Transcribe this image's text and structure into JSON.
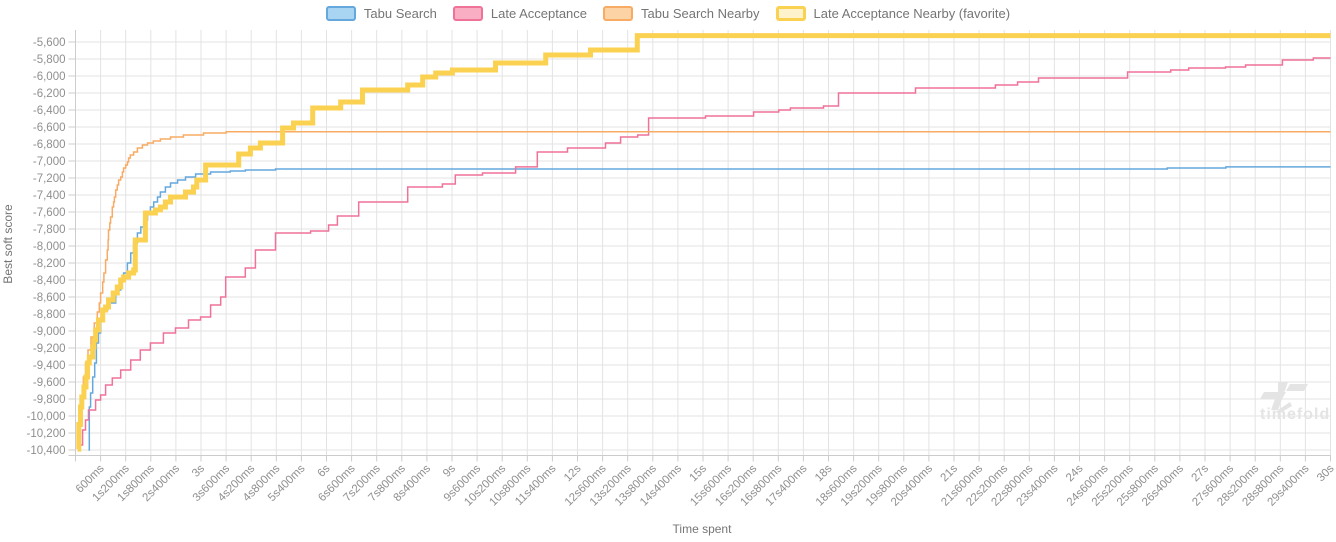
{
  "watermark": {
    "text": "timefold"
  },
  "legend": {
    "items": [
      {
        "label": "Tabu Search",
        "fill": "#A9D4F2",
        "stroke": "#64A8DD",
        "stroke_width": 2
      },
      {
        "label": "Late Acceptance",
        "fill": "#F9AEC4",
        "stroke": "#EF7298",
        "stroke_width": 2
      },
      {
        "label": "Tabu Search Nearby",
        "fill": "#FBD3A4",
        "stroke": "#F7AB64",
        "stroke_width": 2
      },
      {
        "label": "Late Acceptance Nearby (favorite)",
        "fill": "#FEF3CD",
        "stroke": "#FBD152",
        "stroke_width": 3
      }
    ]
  },
  "chart_data": {
    "type": "line",
    "step_mode": "after",
    "title": "",
    "xlabel": "Time spent",
    "ylabel": "Best soft score",
    "xlim_seconds": [
      0,
      30
    ],
    "ylim": [
      -10400,
      -5600
    ],
    "y_tick_step": 200,
    "x_tick_step_seconds": 0.6,
    "grid": true,
    "legend_position": "top",
    "colors": {
      "grid": "#e3e3e3",
      "axis": "#cccccc",
      "tick_label": "#8f8f8f",
      "title": "#757575"
    },
    "y_tick_labels": [
      "-5,600",
      "-5,800",
      "-6,000",
      "-6,200",
      "-6,400",
      "-6,600",
      "-6,800",
      "-7,000",
      "-7,200",
      "-7,400",
      "-7,600",
      "-7,800",
      "-8,000",
      "-8,200",
      "-8,400",
      "-8,600",
      "-8,800",
      "-9,000",
      "-9,200",
      "-9,400",
      "-9,600",
      "-9,800",
      "-10,000",
      "-10,200",
      "-10,400"
    ],
    "x_tick_labels": [
      "600ms",
      "1s200ms",
      "1s800ms",
      "2s400ms",
      "3s",
      "3s600ms",
      "4s200ms",
      "4s800ms",
      "5s400ms",
      "6s",
      "6s600ms",
      "7s200ms",
      "7s800ms",
      "8s400ms",
      "9s",
      "9s600ms",
      "10s200ms",
      "10s800ms",
      "11s400ms",
      "12s",
      "12s600ms",
      "13s200ms",
      "13s800ms",
      "14s400ms",
      "15s",
      "15s600ms",
      "16s200ms",
      "16s800ms",
      "17s400ms",
      "18s",
      "18s600ms",
      "19s200ms",
      "19s800ms",
      "20s400ms",
      "21s",
      "21s600ms",
      "22s200ms",
      "22s800ms",
      "23s400ms",
      "24s",
      "24s600ms",
      "25s200ms",
      "25s800ms",
      "26s400ms",
      "27s",
      "27s600ms",
      "28s200ms",
      "28s800ms",
      "29s400ms",
      "30s"
    ],
    "series": [
      {
        "name": "Tabu Search",
        "color": "#64A8DD",
        "width": 1.5,
        "points": [
          [
            0.31,
            -10400
          ],
          [
            0.33,
            -9894
          ],
          [
            0.36,
            -9729
          ],
          [
            0.41,
            -9541
          ],
          [
            0.46,
            -9376
          ],
          [
            0.5,
            -9141
          ],
          [
            0.55,
            -9024
          ],
          [
            0.6,
            -8871
          ],
          [
            0.67,
            -8753
          ],
          [
            0.77,
            -8671
          ],
          [
            0.96,
            -8518
          ],
          [
            1.08,
            -8400
          ],
          [
            1.15,
            -8318
          ],
          [
            1.24,
            -8200
          ],
          [
            1.32,
            -8082
          ],
          [
            1.39,
            -7965
          ],
          [
            1.48,
            -7847
          ],
          [
            1.56,
            -7776
          ],
          [
            1.63,
            -7694
          ],
          [
            1.72,
            -7612
          ],
          [
            1.79,
            -7541
          ],
          [
            1.87,
            -7482
          ],
          [
            1.96,
            -7424
          ],
          [
            2.03,
            -7365
          ],
          [
            2.15,
            -7306
          ],
          [
            2.27,
            -7259
          ],
          [
            2.44,
            -7224
          ],
          [
            2.63,
            -7188
          ],
          [
            2.87,
            -7153
          ],
          [
            3.23,
            -7129
          ],
          [
            3.7,
            -7118
          ],
          [
            4.06,
            -7106
          ],
          [
            4.78,
            -7094
          ],
          [
            26.1,
            -7082
          ],
          [
            27.5,
            -7070
          ],
          [
            30,
            -7070
          ]
        ]
      },
      {
        "name": "Late Acceptance",
        "color": "#EF7298",
        "width": 1.5,
        "points": [
          [
            0.12,
            -10341
          ],
          [
            0.17,
            -10165
          ],
          [
            0.24,
            -10047
          ],
          [
            0.31,
            -9929
          ],
          [
            0.48,
            -9812
          ],
          [
            0.6,
            -9753
          ],
          [
            0.72,
            -9635
          ],
          [
            0.88,
            -9553
          ],
          [
            1.08,
            -9459
          ],
          [
            1.32,
            -9341
          ],
          [
            1.55,
            -9224
          ],
          [
            1.79,
            -9141
          ],
          [
            2.1,
            -9024
          ],
          [
            2.39,
            -8965
          ],
          [
            2.7,
            -8871
          ],
          [
            2.99,
            -8835
          ],
          [
            3.23,
            -8694
          ],
          [
            3.47,
            -8600
          ],
          [
            3.59,
            -8365
          ],
          [
            4.06,
            -8259
          ],
          [
            4.3,
            -8047
          ],
          [
            4.78,
            -7847
          ],
          [
            5.62,
            -7824
          ],
          [
            6.05,
            -7753
          ],
          [
            6.26,
            -7647
          ],
          [
            6.77,
            -7482
          ],
          [
            7.94,
            -7306
          ],
          [
            8.77,
            -7271
          ],
          [
            9.08,
            -7165
          ],
          [
            9.73,
            -7141
          ],
          [
            10.52,
            -7070
          ],
          [
            11.04,
            -6894
          ],
          [
            11.76,
            -6847
          ],
          [
            12.67,
            -6788
          ],
          [
            13.03,
            -6718
          ],
          [
            13.44,
            -6694
          ],
          [
            13.7,
            -6494
          ],
          [
            15.06,
            -6471
          ],
          [
            16.21,
            -6424
          ],
          [
            16.81,
            -6400
          ],
          [
            17.09,
            -6376
          ],
          [
            17.88,
            -6353
          ],
          [
            18.24,
            -6200
          ],
          [
            20.08,
            -6141
          ],
          [
            21.99,
            -6106
          ],
          [
            22.52,
            -6071
          ],
          [
            23.02,
            -6024
          ],
          [
            25.15,
            -5953
          ],
          [
            26.18,
            -5929
          ],
          [
            26.61,
            -5906
          ],
          [
            27.49,
            -5894
          ],
          [
            27.97,
            -5871
          ],
          [
            28.85,
            -5812
          ],
          [
            29.59,
            -5788
          ],
          [
            30,
            -5788
          ]
        ]
      },
      {
        "name": "Tabu Search Nearby",
        "color": "#F7AB64",
        "width": 1.5,
        "points": [
          [
            0.06,
            -10390
          ],
          [
            0.1,
            -10047
          ],
          [
            0.14,
            -9776
          ],
          [
            0.19,
            -9541
          ],
          [
            0.24,
            -9376
          ],
          [
            0.3,
            -9224
          ],
          [
            0.37,
            -9071
          ],
          [
            0.45,
            -8906
          ],
          [
            0.52,
            -8776
          ],
          [
            0.57,
            -8671
          ],
          [
            0.6,
            -8553
          ],
          [
            0.65,
            -8424
          ],
          [
            0.68,
            -8318
          ],
          [
            0.72,
            -8165
          ],
          [
            0.76,
            -8047
          ],
          [
            0.78,
            -7929
          ],
          [
            0.79,
            -7812
          ],
          [
            0.82,
            -7729
          ],
          [
            0.84,
            -7659
          ],
          [
            0.88,
            -7541
          ],
          [
            0.91,
            -7482
          ],
          [
            0.93,
            -7424
          ],
          [
            0.96,
            -7341
          ],
          [
            1.0,
            -7282
          ],
          [
            1.03,
            -7224
          ],
          [
            1.08,
            -7188
          ],
          [
            1.12,
            -7129
          ],
          [
            1.15,
            -7082
          ],
          [
            1.2,
            -7047
          ],
          [
            1.24,
            -7012
          ],
          [
            1.27,
            -6965
          ],
          [
            1.31,
            -6929
          ],
          [
            1.39,
            -6894
          ],
          [
            1.48,
            -6847
          ],
          [
            1.6,
            -6812
          ],
          [
            1.72,
            -6788
          ],
          [
            1.86,
            -6765
          ],
          [
            2.03,
            -6741
          ],
          [
            2.27,
            -6718
          ],
          [
            2.58,
            -6694
          ],
          [
            3.06,
            -6671
          ],
          [
            3.6,
            -6655
          ],
          [
            30,
            -6655
          ]
        ]
      },
      {
        "name": "Late Acceptance Nearby (favorite)",
        "color": "#FBD152",
        "width": 5,
        "points": [
          [
            0.05,
            -10390
          ],
          [
            0.08,
            -10100
          ],
          [
            0.12,
            -9894
          ],
          [
            0.15,
            -9776
          ],
          [
            0.2,
            -9659
          ],
          [
            0.25,
            -9541
          ],
          [
            0.29,
            -9376
          ],
          [
            0.33,
            -9306
          ],
          [
            0.41,
            -9188
          ],
          [
            0.44,
            -9106
          ],
          [
            0.48,
            -8988
          ],
          [
            0.55,
            -8871
          ],
          [
            0.65,
            -8753
          ],
          [
            0.72,
            -8718
          ],
          [
            0.79,
            -8635
          ],
          [
            0.9,
            -8553
          ],
          [
            1.0,
            -8482
          ],
          [
            1.08,
            -8400
          ],
          [
            1.15,
            -8365
          ],
          [
            1.27,
            -8318
          ],
          [
            1.39,
            -8282
          ],
          [
            1.43,
            -7929
          ],
          [
            1.67,
            -7612
          ],
          [
            1.91,
            -7576
          ],
          [
            2.03,
            -7541
          ],
          [
            2.15,
            -7482
          ],
          [
            2.27,
            -7424
          ],
          [
            2.63,
            -7365
          ],
          [
            2.82,
            -7306
          ],
          [
            2.9,
            -7224
          ],
          [
            3.11,
            -7047
          ],
          [
            3.9,
            -6918
          ],
          [
            4.18,
            -6847
          ],
          [
            4.42,
            -6788
          ],
          [
            4.95,
            -6612
          ],
          [
            5.21,
            -6553
          ],
          [
            5.67,
            -6377
          ],
          [
            6.34,
            -6306
          ],
          [
            6.86,
            -6165
          ],
          [
            7.94,
            -6106
          ],
          [
            8.3,
            -6012
          ],
          [
            8.61,
            -5965
          ],
          [
            9.01,
            -5929
          ],
          [
            10.04,
            -5847
          ],
          [
            11.24,
            -5753
          ],
          [
            12.31,
            -5694
          ],
          [
            13.43,
            -5525
          ],
          [
            30,
            -5525
          ]
        ]
      }
    ]
  }
}
